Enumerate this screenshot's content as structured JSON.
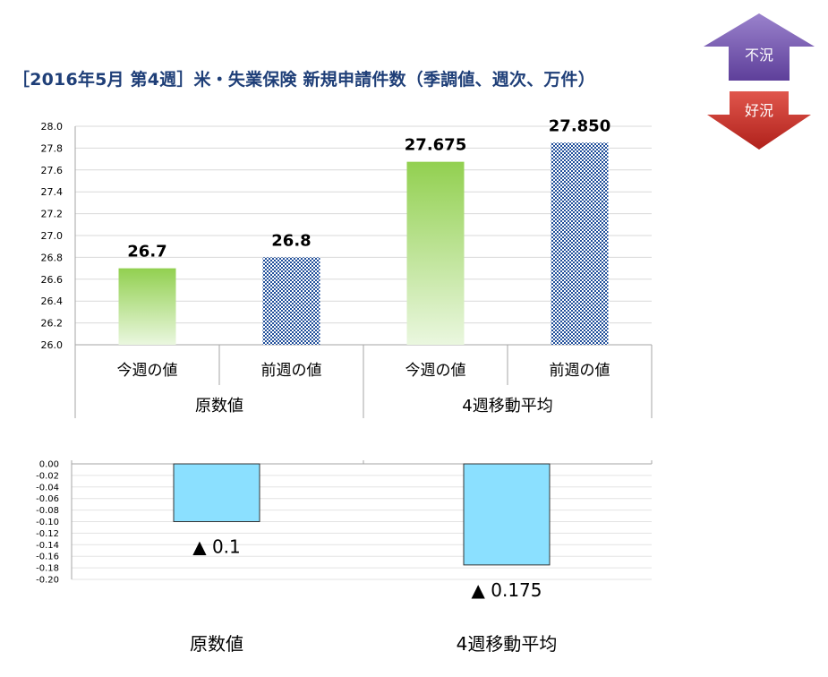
{
  "title": "［2016年5月 第4週］米・失業保険 新規申請件数（季調値、週次、万件）",
  "indicators": {
    "bad": "不況",
    "good": "好況"
  },
  "colors": {
    "bad_arrow": "#7f5fb5",
    "good_arrow": "#d13a33",
    "green": "#92d050",
    "blue_hatch": "#1f4e9a",
    "diff_bar": "#8be0ff",
    "title": "#1f3f78"
  },
  "chart_data": [
    {
      "type": "bar",
      "title": "",
      "ylim": [
        26.0,
        28.0
      ],
      "ytick_step": 0.2,
      "grid": true,
      "categories": [
        "今週の値",
        "前週の値",
        "今週の値",
        "前週の値"
      ],
      "groups": [
        "原数値",
        "4週移動平均"
      ],
      "values": [
        26.7,
        26.8,
        27.675,
        27.85
      ],
      "value_labels": [
        "26.7",
        "26.8",
        "27.675",
        "27.850"
      ],
      "bar_styles": [
        "green-gradient",
        "blue-hatch",
        "green-gradient",
        "blue-hatch"
      ]
    },
    {
      "type": "bar",
      "title": "",
      "ylim": [
        -0.2,
        0.0
      ],
      "ytick_step": 0.02,
      "grid": true,
      "categories": [
        "原数値",
        "4週移動平均"
      ],
      "values": [
        -0.1,
        -0.175
      ],
      "value_labels": [
        "▲ 0.1",
        "▲ 0.175"
      ]
    }
  ]
}
